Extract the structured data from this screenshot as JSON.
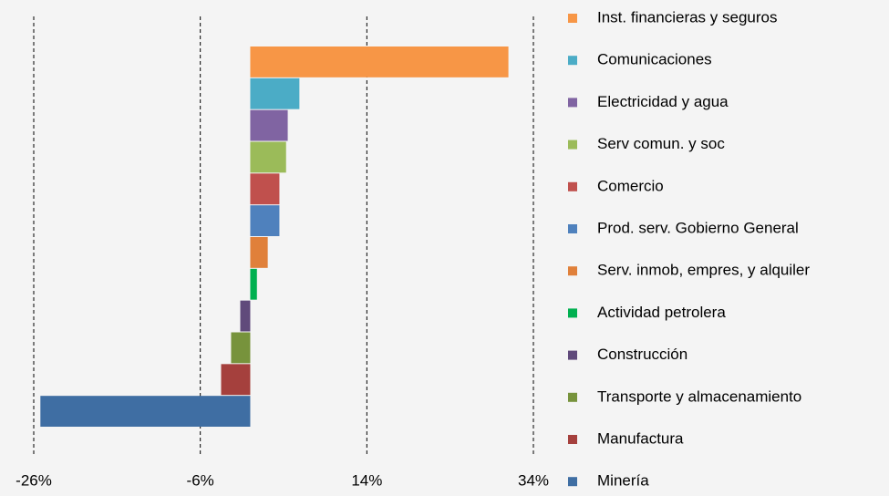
{
  "chart_data": {
    "type": "barh",
    "categories": [
      "Inst. financieras y seguros",
      "Comunicaciones",
      "Electricidad y agua",
      "Serv comun. y soc",
      "Comercio",
      "Prod. serv. Gobierno General",
      "Serv. inmob, empres, y alquiler",
      "Actividad petrolera",
      "Construcción",
      "Transporte y almacenamiento",
      "Manufactura",
      "Minería"
    ],
    "values": [
      31,
      5.9,
      4.5,
      4.3,
      3.5,
      3.5,
      2.1,
      0.8,
      -1.2,
      -2.3,
      -3.5,
      -25.2
    ],
    "colors": [
      "#f79646",
      "#4bacc6",
      "#8064a2",
      "#9bbb59",
      "#c0504d",
      "#4f81bd",
      "#e0803a",
      "#00b050",
      "#604a7b",
      "#77933c",
      "#a5403d",
      "#3f6ea3"
    ],
    "xlim": [
      -26,
      34
    ],
    "xticks": [
      {
        "value": -26,
        "label": "-26%"
      },
      {
        "value": -6,
        "label": "-6%"
      },
      {
        "value": 14,
        "label": "14%"
      },
      {
        "value": 34,
        "label": "34%"
      }
    ],
    "grid": true
  }
}
